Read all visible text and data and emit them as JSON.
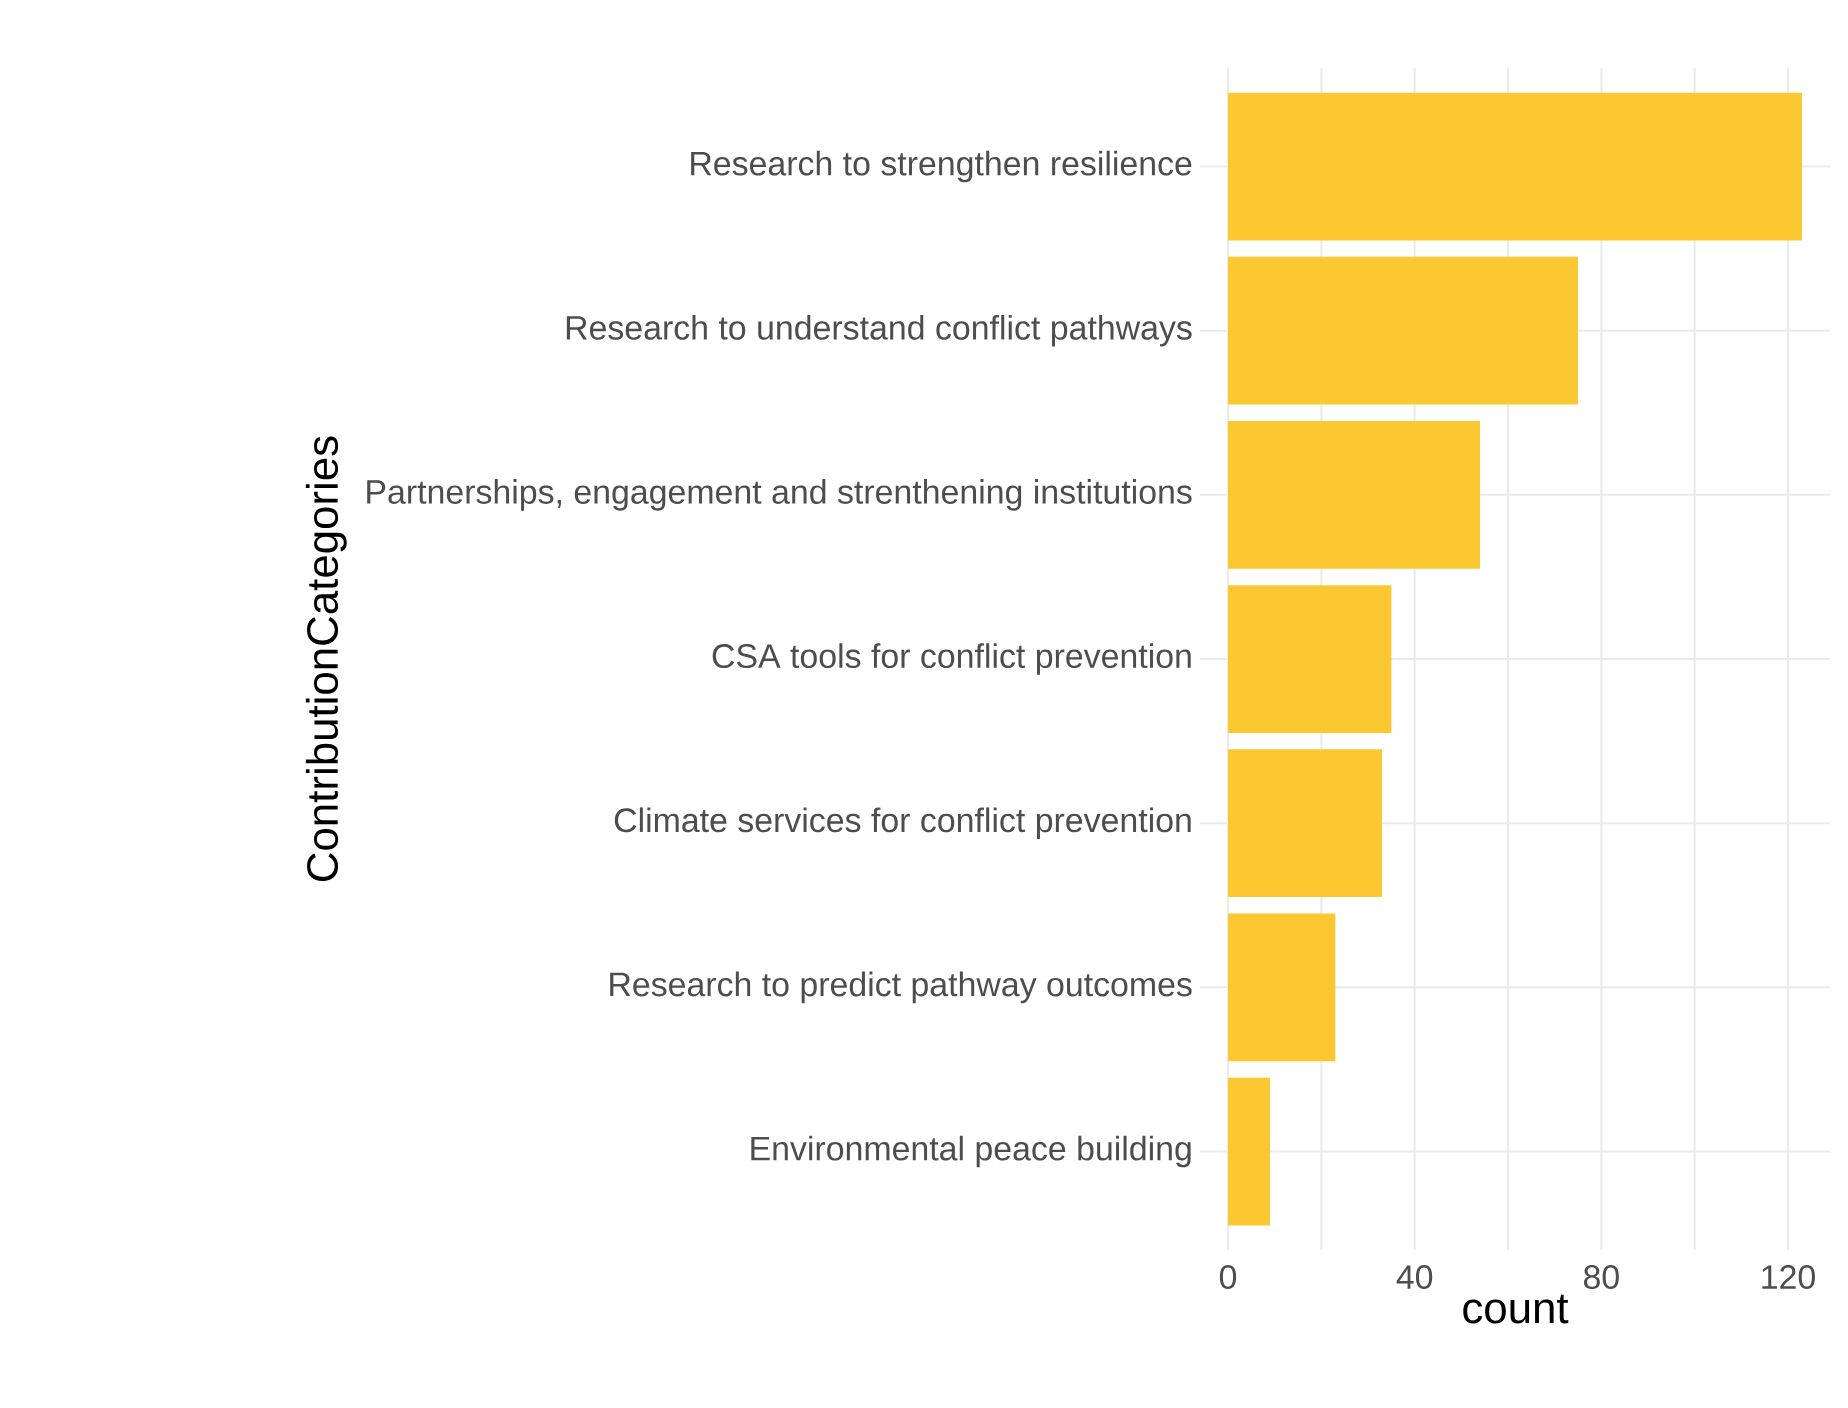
{
  "chart_data": {
    "type": "bar",
    "orientation": "horizontal",
    "xlabel": "count",
    "ylabel": "ContributionCategories",
    "categories": [
      "Research to strengthen resilience",
      "Research to understand conflict pathways",
      "Partnerships, engagement and strenthening institutions",
      "CSA tools for conflict prevention",
      "Climate services for conflict prevention",
      "Research to predict pathway outcomes",
      "Environmental peace building"
    ],
    "values": [
      123,
      75,
      54,
      35,
      33,
      23,
      9
    ],
    "color": "#fcc832",
    "xlim": [
      -6,
      129
    ],
    "xticks": [
      0,
      {
        "value": 20,
        "label": null
      },
      40,
      {
        "value": 60,
        "label": null
      },
      80,
      {
        "value": 100,
        "label": null
      },
      120
    ],
    "grid": true
  }
}
